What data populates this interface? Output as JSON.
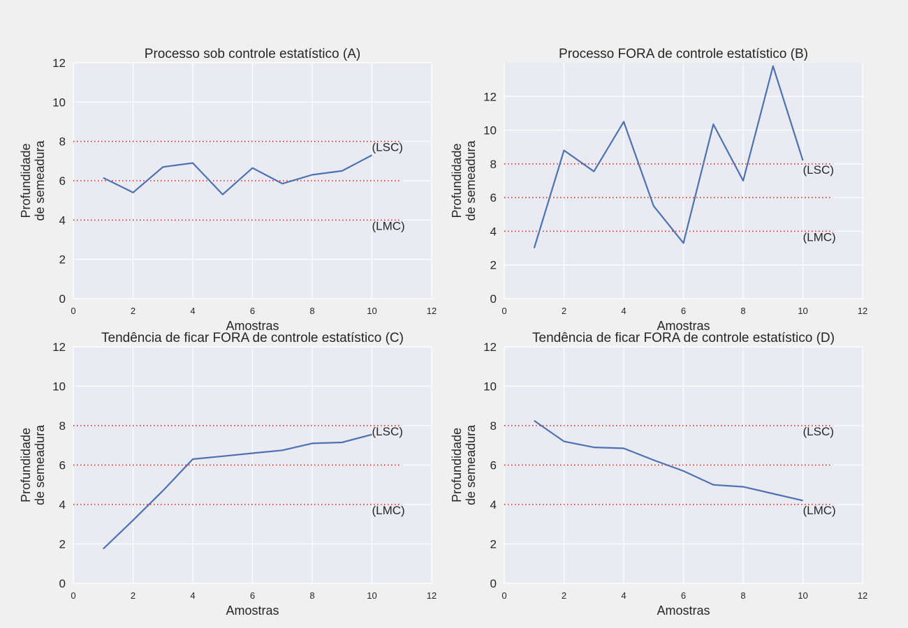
{
  "figure": {
    "background_color": "#f0f0f0",
    "plot_background_color": "#eaeaf2",
    "grid_color": "#ffffff",
    "line_color": "#4c72b0",
    "limit_line_color": "#ff0000"
  },
  "chart_data": [
    {
      "type": "line",
      "title": "Processo sob controle estatístico (A)",
      "xlabel": "Amostras",
      "ylabel_lines": [
        "Profundidade",
        "de semeadura"
      ],
      "xlim": [
        0,
        12
      ],
      "ylim": [
        0,
        12
      ],
      "xticks": [
        0,
        2,
        4,
        6,
        8,
        10,
        12
      ],
      "yticks": [
        0,
        2,
        4,
        6,
        8,
        10,
        12
      ],
      "grid": true,
      "x": [
        1,
        2,
        3,
        4,
        5,
        6,
        7,
        8,
        9,
        10
      ],
      "y": [
        6.15,
        5.4,
        6.7,
        6.9,
        5.3,
        6.65,
        5.85,
        6.3,
        6.5,
        7.3
      ],
      "control_limits": [
        {
          "value": 8,
          "label": "(LSC)"
        },
        {
          "value": 6,
          "label": ""
        },
        {
          "value": 4,
          "label": "(LMC)"
        }
      ],
      "limit_line_x": [
        0,
        11
      ]
    },
    {
      "type": "line",
      "title": "Processo FORA de controle estatístico (B)",
      "xlabel": "Amostras",
      "ylabel_lines": [
        "Profundidade",
        "de semeadura"
      ],
      "xlim": [
        0,
        12
      ],
      "ylim": [
        0,
        14
      ],
      "xticks": [
        0,
        2,
        4,
        6,
        8,
        10,
        12
      ],
      "yticks": [
        0,
        2,
        4,
        6,
        8,
        10,
        12
      ],
      "grid": true,
      "x": [
        1,
        2,
        3,
        4,
        5,
        6,
        7,
        8,
        9,
        10
      ],
      "y": [
        3.0,
        8.8,
        7.55,
        10.5,
        5.5,
        3.3,
        10.35,
        7.0,
        13.8,
        8.2
      ],
      "control_limits": [
        {
          "value": 8,
          "label": "(LSC)"
        },
        {
          "value": 6,
          "label": ""
        },
        {
          "value": 4,
          "label": "(LMC)"
        }
      ],
      "limit_line_x": [
        0,
        11
      ]
    },
    {
      "type": "line",
      "title": "Tendência de ficar FORA de controle estatístico (C)",
      "xlabel": "Amostras",
      "ylabel_lines": [
        "Profundidade",
        "de semeadura"
      ],
      "xlim": [
        0,
        12
      ],
      "ylim": [
        0,
        12
      ],
      "xticks": [
        0,
        2,
        4,
        6,
        8,
        10,
        12
      ],
      "yticks": [
        0,
        2,
        4,
        6,
        8,
        10,
        12
      ],
      "grid": true,
      "x": [
        1,
        2,
        3,
        4,
        5,
        6,
        7,
        8,
        9,
        10
      ],
      "y": [
        1.75,
        3.2,
        4.7,
        6.3,
        6.45,
        6.6,
        6.75,
        7.1,
        7.15,
        7.55
      ],
      "control_limits": [
        {
          "value": 8,
          "label": "(LSC)"
        },
        {
          "value": 6,
          "label": ""
        },
        {
          "value": 4,
          "label": "(LMC)"
        }
      ],
      "limit_line_x": [
        0,
        11
      ]
    },
    {
      "type": "line",
      "title": "Tendência de ficar FORA de controle estatístico (D)",
      "xlabel": "Amostras",
      "ylabel_lines": [
        "Profundidade",
        "de semeadura"
      ],
      "xlim": [
        0,
        12
      ],
      "ylim": [
        0,
        12
      ],
      "xticks": [
        0,
        2,
        4,
        6,
        8,
        10,
        12
      ],
      "yticks": [
        0,
        2,
        4,
        6,
        8,
        10,
        12
      ],
      "grid": true,
      "x": [
        1,
        2,
        3,
        4,
        5,
        6,
        7,
        8,
        9,
        10
      ],
      "y": [
        8.25,
        7.2,
        6.9,
        6.85,
        6.25,
        5.7,
        5.0,
        4.9,
        4.55,
        4.2
      ],
      "control_limits": [
        {
          "value": 8,
          "label": "(LSC)"
        },
        {
          "value": 6,
          "label": ""
        },
        {
          "value": 4,
          "label": "(LMC)"
        }
      ],
      "limit_line_x": [
        0,
        11
      ]
    }
  ]
}
